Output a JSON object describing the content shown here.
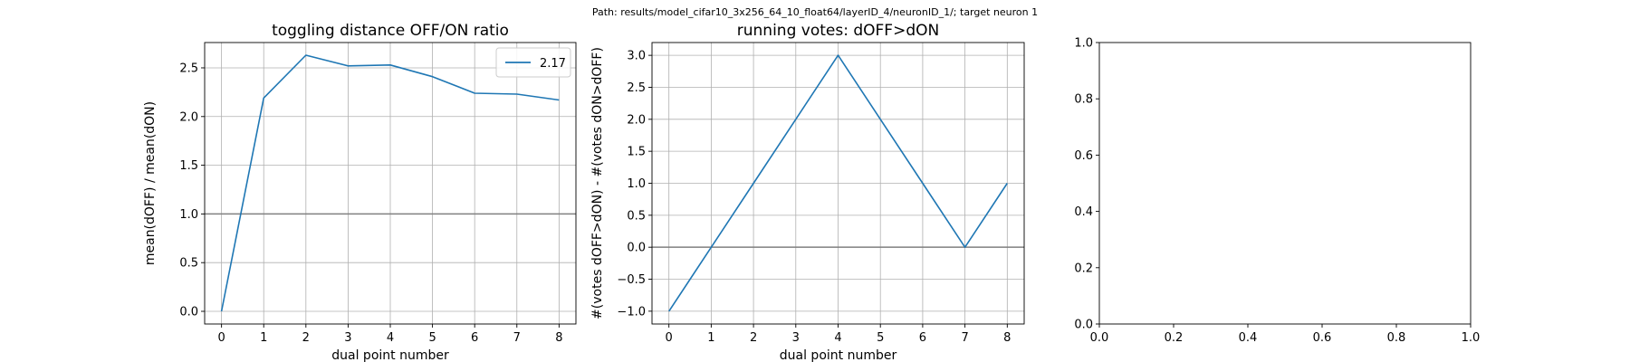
{
  "suptitle": "Path: results/model_cifar10_3x256_64_10_float64/layerID_4/neuronID_1/; target neuron 1",
  "chart_data": [
    {
      "type": "line",
      "title": "toggling distance OFF/ON ratio",
      "xlabel": "dual point number",
      "ylabel": "mean(dOFF) / mean(dON)",
      "x": [
        0,
        1,
        2,
        3,
        4,
        5,
        6,
        7,
        8
      ],
      "series": [
        {
          "name": "2.17",
          "values": [
            0.0,
            2.19,
            2.63,
            2.52,
            2.53,
            2.41,
            2.24,
            2.23,
            2.17
          ],
          "color": "#1f77b4"
        }
      ],
      "hline": {
        "y": 1.0,
        "color": "#808080"
      },
      "xlim": [
        -0.4,
        8.4
      ],
      "ylim": [
        -0.13,
        2.76
      ],
      "xticks": [
        0,
        1,
        2,
        3,
        4,
        5,
        6,
        7,
        8
      ],
      "xtick_labels": [
        "0",
        "1",
        "2",
        "3",
        "4",
        "5",
        "6",
        "7",
        "8"
      ],
      "yticks": [
        0.0,
        0.5,
        1.0,
        1.5,
        2.0,
        2.5
      ],
      "ytick_labels": [
        "0.0",
        "0.5",
        "1.0",
        "1.5",
        "2.0",
        "2.5"
      ],
      "grid": true,
      "legend": "top-right"
    },
    {
      "type": "line",
      "title": "running votes: dOFF>dON",
      "xlabel": "dual point number",
      "ylabel": "#(votes dOFF>dON) - #(votes dON>dOFF)",
      "x": [
        0,
        1,
        2,
        3,
        4,
        5,
        6,
        7,
        8
      ],
      "series": [
        {
          "name": "",
          "values": [
            -1,
            0,
            1,
            2,
            3,
            2,
            1,
            0,
            1
          ],
          "color": "#1f77b4"
        }
      ],
      "hline": {
        "y": 0.0,
        "color": "#808080"
      },
      "xlim": [
        -0.4,
        8.4
      ],
      "ylim": [
        -1.2,
        3.2
      ],
      "xticks": [
        0,
        1,
        2,
        3,
        4,
        5,
        6,
        7,
        8
      ],
      "xtick_labels": [
        "0",
        "1",
        "2",
        "3",
        "4",
        "5",
        "6",
        "7",
        "8"
      ],
      "yticks": [
        -1.0,
        -0.5,
        0.0,
        0.5,
        1.0,
        1.5,
        2.0,
        2.5,
        3.0
      ],
      "ytick_labels": [
        "−1.0",
        "−0.5",
        "0.0",
        "0.5",
        "1.0",
        "1.5",
        "2.0",
        "2.5",
        "3.0"
      ],
      "grid": true,
      "legend": ""
    },
    {
      "type": "empty",
      "title": "",
      "xlabel": "",
      "ylabel": "",
      "xlim": [
        0,
        1
      ],
      "ylim": [
        0,
        1
      ],
      "xticks": [
        0.0,
        0.2,
        0.4,
        0.6,
        0.8,
        1.0
      ],
      "xtick_labels": [
        "0.0",
        "0.2",
        "0.4",
        "0.6",
        "0.8",
        "1.0"
      ],
      "yticks": [
        0.0,
        0.2,
        0.4,
        0.6,
        0.8,
        1.0
      ],
      "ytick_labels": [
        "0.0",
        "0.2",
        "0.4",
        "0.6",
        "0.8",
        "1.0"
      ],
      "grid": false,
      "legend": ""
    }
  ]
}
